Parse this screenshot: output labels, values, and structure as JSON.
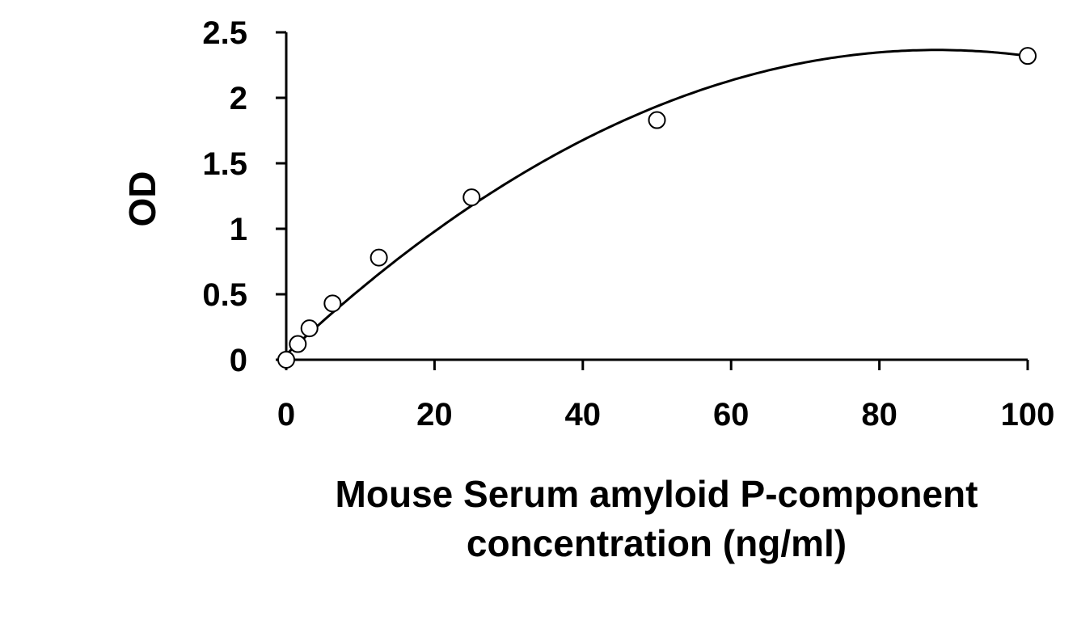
{
  "chart_data": {
    "type": "scatter",
    "xlabel": [
      "Mouse Serum amyloid P-component",
      "concentration (ng/ml)"
    ],
    "ylabel": "OD",
    "xlim": [
      0,
      100
    ],
    "ylim": [
      0,
      2.5
    ],
    "xticks": [
      "0",
      "20",
      "40",
      "60",
      "80",
      "100"
    ],
    "yticks": [
      "0",
      "0.5",
      "1",
      "1.5",
      "2",
      "2.5"
    ],
    "grid": false,
    "legend": "none",
    "series": [
      {
        "points": [
          {
            "x": 0,
            "y": 0.0
          },
          {
            "x": 1.56,
            "y": 0.12
          },
          {
            "x": 3.13,
            "y": 0.24
          },
          {
            "x": 6.25,
            "y": 0.43
          },
          {
            "x": 12.5,
            "y": 0.78
          },
          {
            "x": 25,
            "y": 1.24
          },
          {
            "x": 50,
            "y": 1.83
          },
          {
            "x": 100,
            "y": 2.32
          }
        ],
        "marker": "open-circle",
        "color": "#000000"
      }
    ],
    "fit_curve": {
      "type": "polynomial-2",
      "coefficients": [
        0.04,
        0.053,
        -0.000302
      ]
    }
  }
}
